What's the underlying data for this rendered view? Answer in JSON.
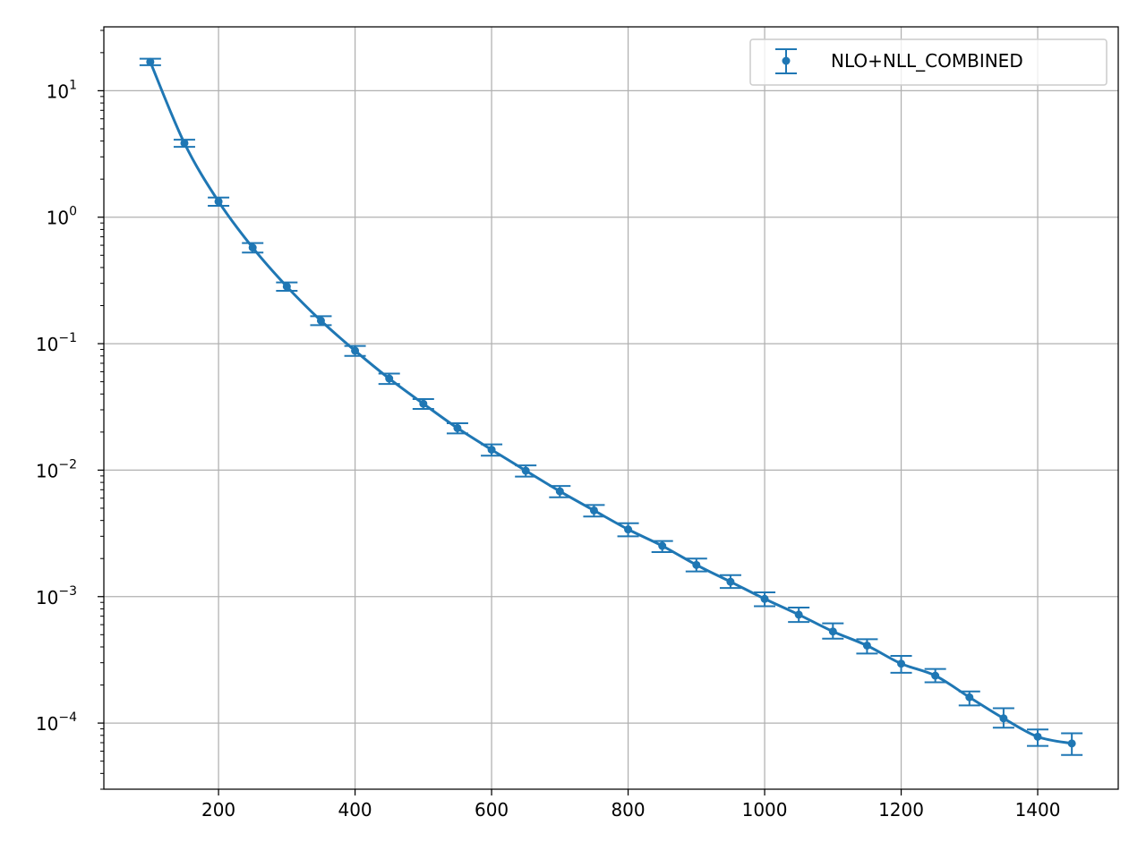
{
  "chart_data": {
    "type": "line",
    "title": "",
    "xlabel": "",
    "ylabel": "",
    "xlim": [
      32,
      1518
    ],
    "ylim": [
      3e-05,
      32
    ],
    "y_scale": "log",
    "grid": true,
    "legend_position": "top-right",
    "x_ticks": [
      200,
      400,
      600,
      800,
      1000,
      1200,
      1400
    ],
    "y_ticks": [
      {
        "value": 10,
        "base": "10",
        "exp": "1"
      },
      {
        "value": 1,
        "base": "10",
        "exp": "0"
      },
      {
        "value": 0.1,
        "base": "10",
        "exp": "−1"
      },
      {
        "value": 0.01,
        "base": "10",
        "exp": "−2"
      },
      {
        "value": 0.001,
        "base": "10",
        "exp": "−3"
      },
      {
        "value": 0.0001,
        "base": "10",
        "exp": "−4"
      }
    ],
    "series": [
      {
        "name": "NLO+NLL_COMBINED",
        "color": "#1f77b4",
        "x": [
          100,
          150,
          200,
          250,
          300,
          350,
          400,
          450,
          500,
          550,
          600,
          650,
          700,
          750,
          800,
          850,
          900,
          950,
          1000,
          1050,
          1100,
          1150,
          1200,
          1250,
          1300,
          1350,
          1400,
          1450
        ],
        "y": [
          16.9,
          3.85,
          1.33,
          0.575,
          0.283,
          0.152,
          0.088,
          0.053,
          0.0335,
          0.0215,
          0.0145,
          0.0099,
          0.0068,
          0.0048,
          0.0034,
          0.00252,
          0.00178,
          0.00131,
          0.00096,
          0.00072,
          0.00053,
          0.00041,
          0.000295,
          0.000237,
          0.00016,
          0.000109,
          7.8e-05,
          6.9e-05
        ],
        "y_low": [
          15.9,
          3.6,
          1.23,
          0.525,
          0.262,
          0.14,
          0.08,
          0.048,
          0.0305,
          0.0195,
          0.013,
          0.0089,
          0.0061,
          0.0043,
          0.003,
          0.00225,
          0.00158,
          0.00117,
          0.00084,
          0.00063,
          0.000465,
          0.000355,
          0.00025,
          0.00021,
          0.000138,
          9.2e-05,
          6.6e-05,
          5.6e-05
        ],
        "y_high": [
          17.9,
          4.1,
          1.43,
          0.625,
          0.305,
          0.165,
          0.096,
          0.058,
          0.0365,
          0.0235,
          0.016,
          0.0109,
          0.0075,
          0.0053,
          0.0038,
          0.00275,
          0.002,
          0.00148,
          0.00108,
          0.00082,
          0.000615,
          0.00046,
          0.00034,
          0.000268,
          0.000178,
          0.000131,
          8.9e-05,
          8.3e-05
        ]
      }
    ]
  }
}
